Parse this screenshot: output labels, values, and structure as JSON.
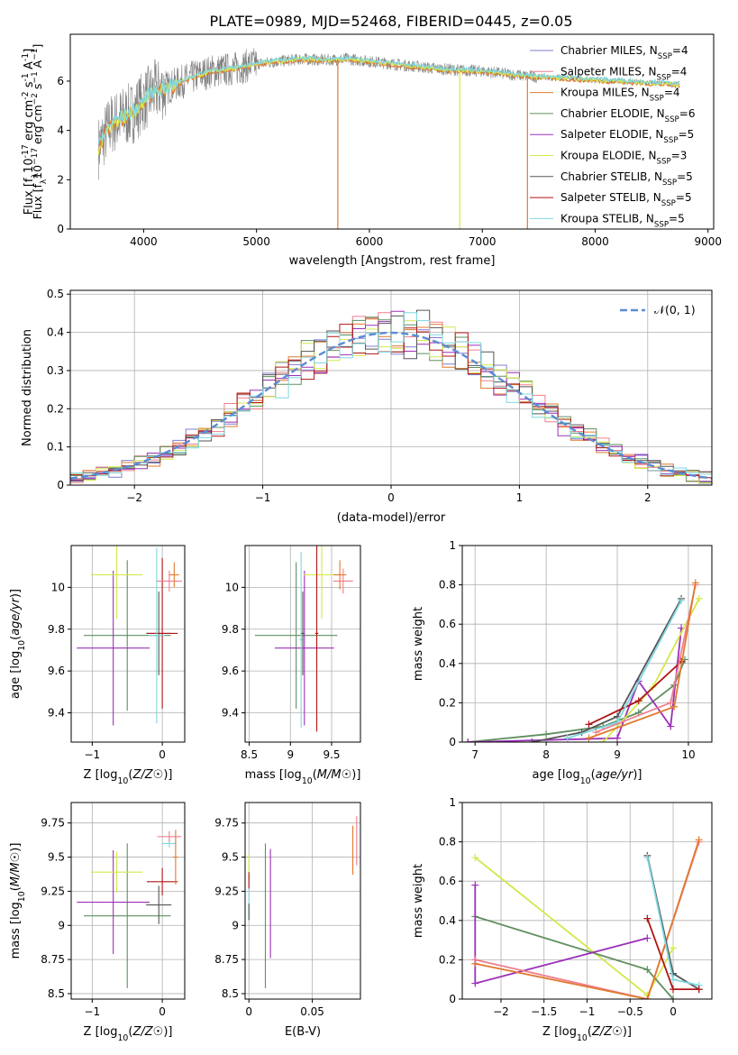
{
  "figure": {
    "title": "PLATE=0989, MJD=52468, FIBERID=0445, z=0.05"
  },
  "colors": {
    "chabrier_miles": "#7f7fd1",
    "salpeter_miles": "#ef7f8f",
    "kroupa_miles": "#e07a2e",
    "chabrier_elodie": "#5f8f5f",
    "salpeter_elodie": "#9b30b8",
    "kroupa_elodie": "#d4e84a",
    "chabrier_stelib": "#555555",
    "salpeter_stelib": "#b01515",
    "kroupa_stelib": "#7fd8e0",
    "data_spectrum": "#808080",
    "normal_curve": "#5b8bd4",
    "grid": "#b0b0b0"
  },
  "chart_data": [
    {
      "id": "spectrum",
      "type": "line",
      "xlabel": "wavelength [Angstrom, rest frame]",
      "ylabel": "Flux [f_λ10^-17 erg cm^-2 s^-1 A^-1]",
      "xlim": [
        3350,
        9050
      ],
      "ylim": [
        0,
        7.9
      ],
      "xticks": [
        4000,
        5000,
        6000,
        7000,
        8000,
        9000
      ],
      "yticks": [
        0,
        2,
        4,
        6
      ],
      "grid": false,
      "legend_position": "top-right",
      "legend": [
        {
          "label": "Chabrier MILES, N_SSP=4",
          "color_key": "chabrier_miles"
        },
        {
          "label": "Salpeter MILES, N_SSP=4",
          "color_key": "salpeter_miles"
        },
        {
          "label": "Kroupa MILES, N_SSP=4",
          "color_key": "kroupa_miles"
        },
        {
          "label": "Chabrier ELODIE, N_SSP=6",
          "color_key": "chabrier_elodie"
        },
        {
          "label": "Salpeter ELODIE, N_SSP=5",
          "color_key": "salpeter_elodie"
        },
        {
          "label": "Kroupa ELODIE, N_SSP=3",
          "color_key": "kroupa_elodie"
        },
        {
          "label": "Chabrier STELIB, N_SSP=5",
          "color_key": "chabrier_stelib"
        },
        {
          "label": "Salpeter STELIB, N_SSP=5",
          "color_key": "salpeter_stelib"
        },
        {
          "label": "Kroupa STELIB, N_SSP=5",
          "color_key": "kroupa_stelib"
        }
      ],
      "continuum": [
        [
          3600,
          3.3
        ],
        [
          3700,
          4.2
        ],
        [
          3800,
          4.5
        ],
        [
          3900,
          4.7
        ],
        [
          4000,
          5.2
        ],
        [
          4100,
          5.6
        ],
        [
          4200,
          5.7
        ],
        [
          4400,
          6.1
        ],
        [
          4600,
          6.4
        ],
        [
          4800,
          6.5
        ],
        [
          5000,
          6.7
        ],
        [
          5200,
          6.8
        ],
        [
          5400,
          6.9
        ],
        [
          5600,
          6.85
        ],
        [
          5800,
          6.9
        ],
        [
          6000,
          6.8
        ],
        [
          6200,
          6.7
        ],
        [
          6400,
          6.6
        ],
        [
          6600,
          6.5
        ],
        [
          6800,
          6.45
        ],
        [
          7000,
          6.4
        ],
        [
          7200,
          6.3
        ],
        [
          7400,
          6.2
        ],
        [
          7600,
          6.15
        ],
        [
          7800,
          6.1
        ],
        [
          8000,
          6.05
        ],
        [
          8200,
          6.0
        ],
        [
          8400,
          5.95
        ],
        [
          8600,
          5.9
        ],
        [
          8750,
          5.85
        ]
      ],
      "spikes": [
        [
          5720,
          0
        ],
        [
          6800,
          0
        ],
        [
          7400,
          0
        ]
      ]
    },
    {
      "id": "residuals",
      "type": "histogram",
      "xlabel": "(data-model)/error",
      "ylabel": "Normed distribution",
      "xlim": [
        -2.5,
        2.5
      ],
      "ylim": [
        0,
        0.51
      ],
      "xticks": [
        -2,
        -1,
        0,
        1,
        2
      ],
      "yticks": [
        0.0,
        0.1,
        0.2,
        0.3,
        0.4,
        0.5
      ],
      "grid": true,
      "legend_position": "top-right",
      "legend": [
        {
          "label": "𝒩(0, 1)",
          "color_key": "normal_curve"
        }
      ],
      "bin_width": 0.1
    },
    {
      "id": "age_vs_z",
      "type": "errorbar",
      "xlabel": "Z [log10(Z/Z☉)]",
      "ylabel": "age [log10(age/yr)]",
      "xlim": [
        -1.3,
        0.32
      ],
      "ylim": [
        9.26,
        10.2
      ],
      "xticks": [
        -1,
        0
      ],
      "yticks": [
        9.4,
        9.6,
        9.8,
        10.0
      ],
      "grid": true,
      "points": [
        {
          "key": "chabrier_elodie",
          "x": -0.5,
          "xerr": 0.62,
          "y": 9.77,
          "yerr": 0.36
        },
        {
          "key": "salpeter_elodie",
          "x": -0.7,
          "xerr": 0.52,
          "y": 9.71,
          "yerr": 0.37
        },
        {
          "key": "kroupa_elodie",
          "x": -0.65,
          "xerr": 0.37,
          "y": 10.06,
          "yerr": 0.21
        },
        {
          "key": "chabrier_stelib",
          "x": -0.05,
          "xerr": 0.18,
          "y": 9.78,
          "yerr": 0.2
        },
        {
          "key": "salpeter_stelib",
          "x": 0.0,
          "xerr": 0.22,
          "y": 9.78,
          "yerr": 0.36
        },
        {
          "key": "kroupa_stelib",
          "x": -0.08,
          "xerr": 0.12,
          "y": 9.77,
          "yerr": 0.42
        },
        {
          "key": "salpeter_miles",
          "x": 0.1,
          "xerr": 0.18,
          "y": 10.03,
          "yerr": 0.05
        },
        {
          "key": "kroupa_miles",
          "x": 0.17,
          "xerr": 0.07,
          "y": 10.06,
          "yerr": 0.06
        }
      ]
    },
    {
      "id": "age_vs_mass",
      "type": "errorbar",
      "xlabel": "mass [log10(M/M☉)]",
      "ylabel": "",
      "xlim": [
        8.45,
        9.85
      ],
      "ylim": [
        9.26,
        10.2
      ],
      "xticks": [
        8.5,
        9.0,
        9.5
      ],
      "yticks": [
        9.4,
        9.6,
        9.8,
        10.0
      ],
      "grid": true,
      "points": [
        {
          "key": "chabrier_elodie",
          "x": 9.07,
          "xerr": 0.5,
          "y": 9.77,
          "yerr": 0.35
        },
        {
          "key": "salpeter_elodie",
          "x": 9.17,
          "xerr": 0.36,
          "y": 9.71,
          "yerr": 0.37
        },
        {
          "key": "kroupa_elodie",
          "x": 9.38,
          "xerr": 0.22,
          "y": 10.06,
          "yerr": 0.21
        },
        {
          "key": "kroupa_stelib",
          "x": 9.13,
          "xerr": 0.02,
          "y": 9.75,
          "yerr": 0.42
        },
        {
          "key": "chabrier_stelib",
          "x": 9.15,
          "xerr": 0.02,
          "y": 9.78,
          "yerr": 0.2
        },
        {
          "key": "salpeter_stelib",
          "x": 9.32,
          "xerr": 0.02,
          "y": 9.78,
          "yerr": 0.47
        },
        {
          "key": "salpeter_miles",
          "x": 9.64,
          "xerr": 0.12,
          "y": 10.03,
          "yerr": 0.06
        },
        {
          "key": "kroupa_miles",
          "x": 9.6,
          "xerr": 0.08,
          "y": 10.06,
          "yerr": 0.07
        }
      ]
    },
    {
      "id": "massweight_vs_age",
      "type": "line",
      "xlabel": "age [log10(age/yr)]",
      "ylabel": "mass weight",
      "xlim": [
        6.82,
        10.33
      ],
      "ylim": [
        0,
        1.0
      ],
      "xticks": [
        7,
        8,
        9,
        10
      ],
      "yticks": [
        0.0,
        0.2,
        0.4,
        0.6,
        0.8,
        1.0
      ],
      "grid": true,
      "series": [
        {
          "key": "chabrier_elodie",
          "points": [
            [
              6.9,
              0.0
            ],
            [
              8.0,
              0.04
            ],
            [
              8.8,
              0.08
            ],
            [
              9.3,
              0.15
            ],
            [
              9.8,
              0.29
            ],
            [
              9.95,
              0.42
            ]
          ]
        },
        {
          "key": "salpeter_elodie",
          "points": [
            [
              6.9,
              0.0
            ],
            [
              9.0,
              0.02
            ],
            [
              9.3,
              0.31
            ],
            [
              9.75,
              0.08
            ],
            [
              9.9,
              0.58
            ]
          ]
        },
        {
          "key": "kroupa_elodie",
          "points": [
            [
              8.8,
              0.0
            ],
            [
              9.5,
              0.28
            ],
            [
              10.15,
              0.73
            ]
          ]
        },
        {
          "key": "chabrier_stelib",
          "points": [
            [
              7.8,
              0.0
            ],
            [
              8.5,
              0.05
            ],
            [
              9.0,
              0.13
            ],
            [
              9.9,
              0.73
            ]
          ]
        },
        {
          "key": "salpeter_stelib",
          "points": [
            [
              8.6,
              0.09
            ],
            [
              9.3,
              0.21
            ],
            [
              9.9,
              0.41
            ]
          ]
        },
        {
          "key": "kroupa_stelib",
          "points": [
            [
              8.3,
              0.02
            ],
            [
              9.0,
              0.1
            ],
            [
              9.9,
              0.72
            ]
          ]
        },
        {
          "key": "salpeter_miles",
          "points": [
            [
              8.7,
              0.05
            ],
            [
              9.75,
              0.2
            ],
            [
              10.1,
              0.8
            ]
          ]
        },
        {
          "key": "kroupa_miles",
          "points": [
            [
              8.6,
              0.02
            ],
            [
              9.8,
              0.18
            ],
            [
              10.1,
              0.81
            ]
          ]
        }
      ]
    },
    {
      "id": "mass_vs_z",
      "type": "errorbar",
      "xlabel": "Z [log10(Z/Z☉)]",
      "ylabel": "mass [log10(M/M☉)]",
      "xlim": [
        -1.3,
        0.32
      ],
      "ylim": [
        8.46,
        9.9
      ],
      "xticks": [
        -1,
        0
      ],
      "yticks": [
        8.5,
        8.75,
        9.0,
        9.25,
        9.5,
        9.75
      ],
      "grid": true,
      "points": [
        {
          "key": "chabrier_elodie",
          "x": -0.5,
          "xerr": 0.62,
          "y": 9.07,
          "yerr": 0.53
        },
        {
          "key": "salpeter_elodie",
          "x": -0.7,
          "xerr": 0.52,
          "y": 9.17,
          "yerr": 0.38
        },
        {
          "key": "kroupa_elodie",
          "x": -0.65,
          "xerr": 0.37,
          "y": 9.39,
          "yerr": 0.15
        },
        {
          "key": "chabrier_stelib",
          "x": -0.05,
          "xerr": 0.18,
          "y": 9.15,
          "yerr": 0.14
        },
        {
          "key": "salpeter_stelib",
          "x": 0.0,
          "xerr": 0.22,
          "y": 9.32,
          "yerr": 0.1
        },
        {
          "key": "kroupa_stelib",
          "x": 0.1,
          "xerr": 0.1,
          "y": 9.6,
          "yerr": 0.03
        },
        {
          "key": "salpeter_miles",
          "x": 0.1,
          "xerr": 0.17,
          "y": 9.65,
          "yerr": 0.04
        },
        {
          "key": "kroupa_miles",
          "x": 0.19,
          "xerr": 0.04,
          "y": 9.5,
          "yerr": 0.2
        }
      ]
    },
    {
      "id": "mass_vs_ebv",
      "type": "errorbar",
      "xlabel": "E(B-V)",
      "ylabel": "",
      "xlim": [
        -0.003,
        0.088
      ],
      "ylim": [
        8.46,
        9.9
      ],
      "xticks": [
        0.0,
        0.05
      ],
      "yticks": [
        8.5,
        8.75,
        9.0,
        9.25,
        9.5,
        9.75
      ],
      "grid": true,
      "points": [
        {
          "key": "kroupa_elodie",
          "x": 0.0,
          "xerr": 0.0,
          "y": 9.42,
          "yerr": 0.1
        },
        {
          "key": "kroupa_stelib",
          "x": 0.0,
          "xerr": 0.0,
          "y": 9.15,
          "yerr": 0.12
        },
        {
          "key": "salpeter_stelib",
          "x": 0.0,
          "xerr": 0.0,
          "y": 9.33,
          "yerr": 0.06
        },
        {
          "key": "chabrier_stelib",
          "x": 0.0,
          "xerr": 0.0,
          "y": 9.1,
          "yerr": 0.06
        },
        {
          "key": "chabrier_elodie",
          "x": 0.013,
          "xerr": 0.0,
          "y": 9.07,
          "yerr": 0.53
        },
        {
          "key": "salpeter_elodie",
          "x": 0.017,
          "xerr": 0.0,
          "y": 9.16,
          "yerr": 0.4
        },
        {
          "key": "kroupa_miles",
          "x": 0.082,
          "xerr": 0.0,
          "y": 9.55,
          "yerr": 0.18
        },
        {
          "key": "salpeter_miles",
          "x": 0.085,
          "xerr": 0.0,
          "y": 9.62,
          "yerr": 0.18
        }
      ]
    },
    {
      "id": "massweight_vs_z",
      "type": "line",
      "xlabel": "Z [log10(Z/Z☉)]",
      "ylabel": "mass weight",
      "xlim": [
        -2.45,
        0.45
      ],
      "ylim": [
        0,
        1.0
      ],
      "xticks": [
        -2.0,
        -1.5,
        -1.0,
        -0.5,
        0.0
      ],
      "yticks": [
        0.0,
        0.2,
        0.4,
        0.6,
        0.8,
        1.0
      ],
      "grid": true,
      "series": [
        {
          "key": "kroupa_elodie",
          "points": [
            [
              -2.3,
              0.72
            ],
            [
              -0.3,
              0.02
            ],
            [
              0.0,
              0.26
            ]
          ]
        },
        {
          "key": "chabrier_elodie",
          "points": [
            [
              -2.3,
              0.42
            ],
            [
              -0.3,
              0.15
            ],
            [
              0.0,
              0.0
            ]
          ]
        },
        {
          "key": "salpeter_elodie",
          "points": [
            [
              -2.3,
              0.58
            ],
            [
              -2.3,
              0.08
            ],
            [
              -0.3,
              0.31
            ]
          ]
        },
        {
          "key": "salpeter_miles",
          "points": [
            [
              -2.3,
              0.2
            ],
            [
              -0.3,
              0.0
            ],
            [
              0.3,
              0.8
            ]
          ]
        },
        {
          "key": "kroupa_miles",
          "points": [
            [
              -2.3,
              0.18
            ],
            [
              -0.3,
              0.0
            ],
            [
              0.3,
              0.81
            ]
          ]
        },
        {
          "key": "chabrier_stelib",
          "points": [
            [
              -0.3,
              0.73
            ],
            [
              0.0,
              0.13
            ],
            [
              0.3,
              0.05
            ]
          ]
        },
        {
          "key": "kroupa_stelib",
          "points": [
            [
              -0.3,
              0.72
            ],
            [
              0.0,
              0.1
            ],
            [
              0.3,
              0.07
            ]
          ]
        },
        {
          "key": "salpeter_stelib",
          "points": [
            [
              -0.3,
              0.41
            ],
            [
              0.0,
              0.05
            ],
            [
              0.3,
              0.05
            ]
          ]
        }
      ]
    }
  ]
}
